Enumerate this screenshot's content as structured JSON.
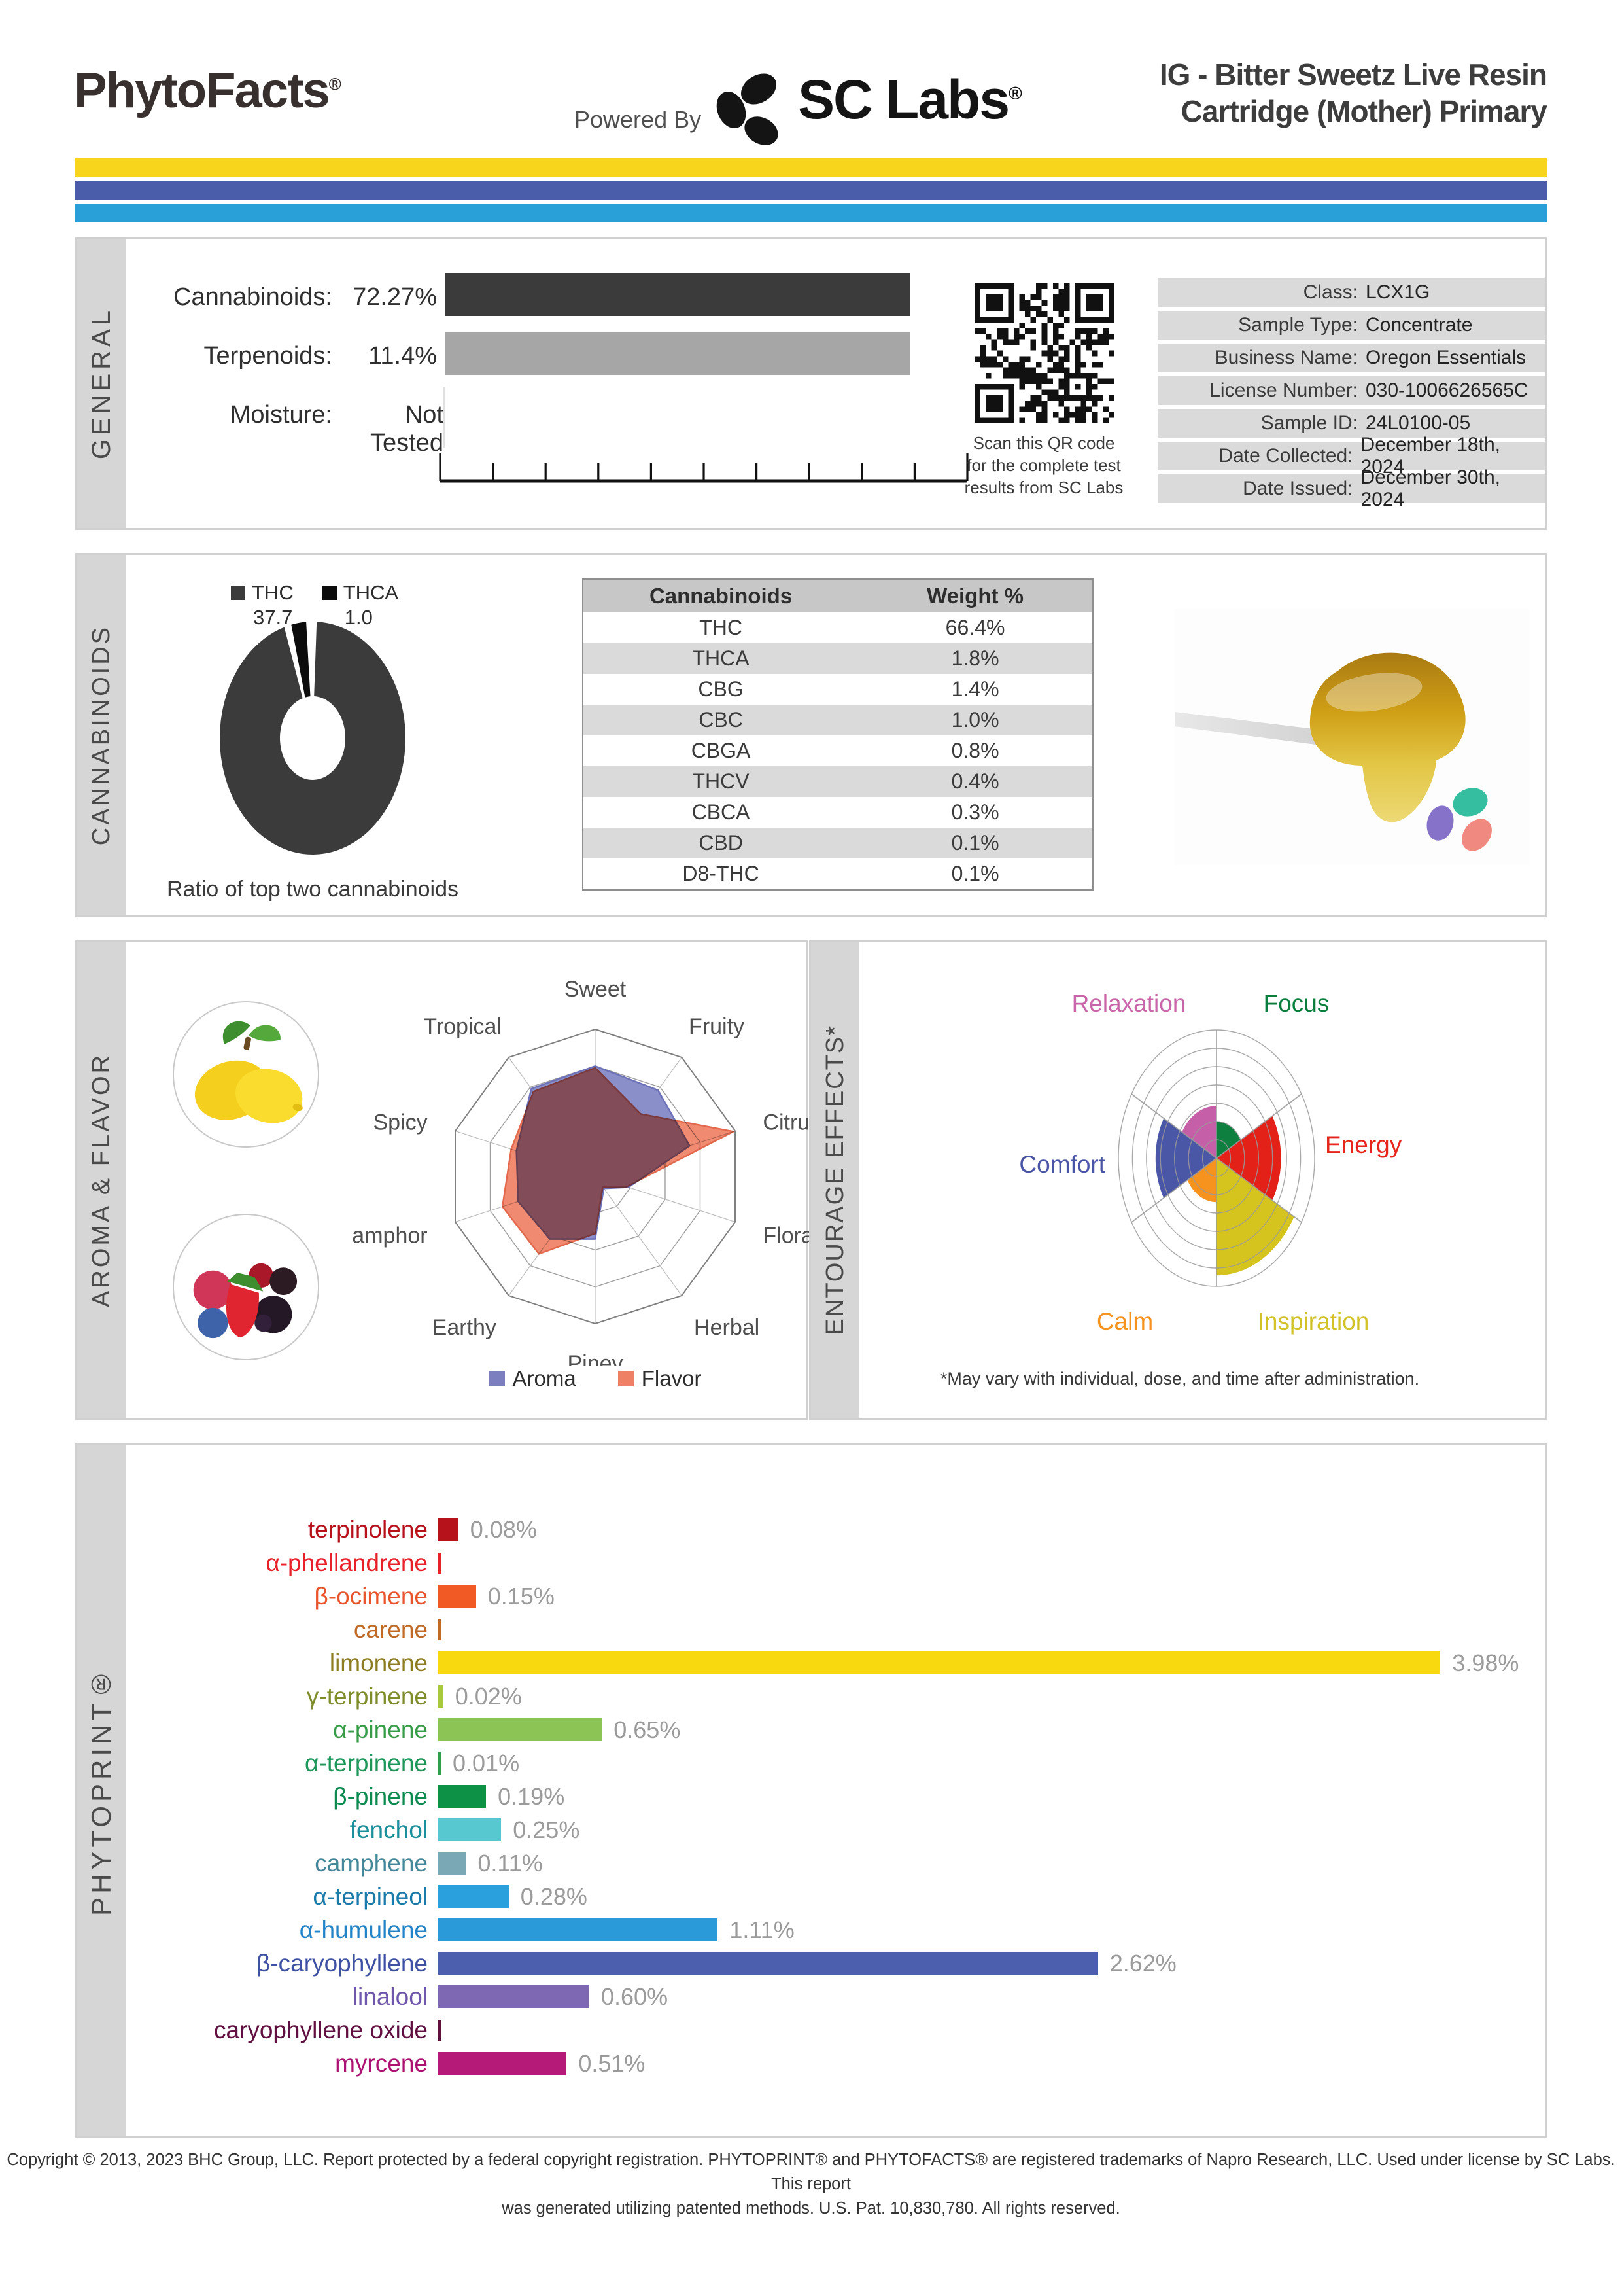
{
  "header": {
    "brand": "PhytoFacts",
    "reg_mark": "®",
    "powered_by": "Powered By",
    "sc_labs": "SC Labs",
    "title_line1": "IG - Bitter Sweetz Live Resin",
    "title_line2": "Cartridge (Mother) Primary",
    "stripe_colors": {
      "yellow": "#f6d51c",
      "indigo": "#4a5dab",
      "blue": "#2aa0d8"
    }
  },
  "general": {
    "section_label": "GENERAL",
    "rows": [
      {
        "label": "Cannabinoids:",
        "value": "72.27%"
      },
      {
        "label": "Terpenoids:",
        "value": "11.4%"
      },
      {
        "label": "Moisture:",
        "value": "Not Tested"
      }
    ],
    "qr_caption_lines": [
      "Scan this QR code",
      "for the complete test",
      "results from SC Labs"
    ],
    "info": [
      {
        "label": "Class:",
        "value": "LCX1G"
      },
      {
        "label": "Sample Type:",
        "value": "Concentrate"
      },
      {
        "label": "Business Name:",
        "value": "Oregon Essentials"
      },
      {
        "label": "License Number:",
        "value": "030-1006626565C"
      },
      {
        "label": "Sample ID:",
        "value": "24L0100-05"
      },
      {
        "label": "Date Collected:",
        "value": "December 18th, 2024"
      },
      {
        "label": "Date Issued:",
        "value": "December 30th, 2024"
      }
    ]
  },
  "cannabinoids": {
    "section_label": "CANNABINOIDS",
    "donut_caption": "Ratio of top two cannabinoids",
    "table_headers": [
      "Cannabinoids",
      "Weight %"
    ],
    "table_rows": [
      [
        "THC",
        "66.4%"
      ],
      [
        "THCA",
        "1.8%"
      ],
      [
        "CBG",
        "1.4%"
      ],
      [
        "CBC",
        "1.0%"
      ],
      [
        "CBGA",
        "0.8%"
      ],
      [
        "THCV",
        "0.4%"
      ],
      [
        "CBCA",
        "0.3%"
      ],
      [
        "CBD",
        "0.1%"
      ],
      [
        "D8-THC",
        "0.1%"
      ]
    ]
  },
  "aroma_flavor": {
    "section_label": "AROMA & FLAVOR",
    "legend": [
      {
        "label": "Aroma",
        "color": "#7b7fc0"
      },
      {
        "label": "Flavor",
        "color": "#ee8066"
      }
    ]
  },
  "entourage": {
    "section_label": "ENTOURAGE EFFECTS*",
    "footnote": "*May vary with individual, dose, and time after administration."
  },
  "phytoprint": {
    "section_label": "PHYTOPRINT®"
  },
  "footer": {
    "line1": "Copyright © 2013, 2023 BHC Group, LLC. Report protected by a federal copyright registration. PHYTOPRINT® and PHYTOFACTS® are registered trademarks of Napro Research, LLC. Used under license by SC Labs. This report",
    "line2": "was generated utilizing patented methods. U.S. Pat. 10,830,780. All rights reserved."
  },
  "chart_data": [
    {
      "id": "general_levels",
      "type": "bar",
      "unit": "%",
      "categories": [
        "Cannabinoids",
        "Terpenoids"
      ],
      "values": [
        72.27,
        11.4
      ],
      "note": "Moisture: Not Tested",
      "colors": [
        "#3b3b3b",
        "#a6a6a6"
      ]
    },
    {
      "id": "cannabinoid_ratio_donut",
      "type": "pie",
      "title": "Ratio of top two cannabinoids",
      "labels": [
        "THC",
        "THCA"
      ],
      "values": [
        37.7,
        1.0
      ],
      "colors": [
        "#3b3b3b",
        "#0c0c0c"
      ]
    },
    {
      "id": "aroma_flavor_radar",
      "type": "radar",
      "rmax": 4,
      "categories": [
        "Sweet",
        "Fruity",
        "Citrusy",
        "Floral",
        "Herbal",
        "Piney",
        "Earthy",
        "Camphor",
        "Spicy",
        "Tropical"
      ],
      "series": [
        {
          "name": "Aroma",
          "values": [
            3.0,
            2.9,
            2.7,
            0.95,
            0.4,
            1.7,
            2.1,
            2.2,
            2.25,
            2.95
          ],
          "color": "#8a8ec9",
          "stroke": "#6d72b8"
        },
        {
          "name": "Flavor",
          "values": [
            2.95,
            2.1,
            3.95,
            0.9,
            0.35,
            1.55,
            2.6,
            2.65,
            2.4,
            2.85
          ],
          "color": "#f08a70",
          "stroke": "#e3694e"
        }
      ],
      "legend_position": "bottom"
    },
    {
      "id": "entourage_rose",
      "type": "rose",
      "rmax": 7,
      "rings": 7,
      "categories": [
        "Focus",
        "Energy",
        "Inspiration",
        "Calm",
        "Comfort",
        "Relaxation"
      ],
      "values": [
        2.0,
        4.6,
        6.4,
        2.4,
        4.35,
        2.85
      ],
      "colors": [
        "#0e7f3f",
        "#e32119",
        "#d5c41d",
        "#f6921e",
        "#4a57a6",
        "#c45fa8"
      ],
      "label_colors": [
        "#0b7e3e",
        "#e6251c",
        "#d2c228",
        "#f6921e",
        "#4a55a5",
        "#c965a9"
      ]
    },
    {
      "id": "phytoprint_terpenes",
      "type": "bar",
      "orientation": "horizontal",
      "unit": "%",
      "xlim": [
        0,
        4.2
      ],
      "items": [
        {
          "name": "terpinolene",
          "value": 0.08,
          "display": "0.08%",
          "bar_color": "#b5121b",
          "label_color": "#b5121b"
        },
        {
          "name": "α-phellandrene",
          "value": 0,
          "display": "",
          "bar_color": "#e8202a",
          "label_color": "#e8202a"
        },
        {
          "name": "β-ocimene",
          "value": 0.15,
          "display": "0.15%",
          "bar_color": "#f15a24",
          "label_color": "#e8542c"
        },
        {
          "name": "carene",
          "value": 0,
          "display": "",
          "bar_color": "#bf6b27",
          "label_color": "#bf6b27"
        },
        {
          "name": "limonene",
          "value": 3.98,
          "display": "3.98%",
          "bar_color": "#f8d90f",
          "label_color": "#8d7d22"
        },
        {
          "name": "γ-terpinene",
          "value": 0.02,
          "display": "0.02%",
          "bar_color": "#a9c93d",
          "label_color": "#7e8c2a"
        },
        {
          "name": "α-pinene",
          "value": 0.65,
          "display": "0.65%",
          "bar_color": "#8cc455",
          "label_color": "#379b47"
        },
        {
          "name": "α-terpinene",
          "value": 0.01,
          "display": "0.01%",
          "bar_color": "#2f9e4f",
          "label_color": "#1f9559"
        },
        {
          "name": "β-pinene",
          "value": 0.19,
          "display": "0.19%",
          "bar_color": "#0d9147",
          "label_color": "#0d8a50"
        },
        {
          "name": "fenchol",
          "value": 0.25,
          "display": "0.25%",
          "bar_color": "#57c8cf",
          "label_color": "#1b8f9b"
        },
        {
          "name": "camphene",
          "value": 0.11,
          "display": "0.11%",
          "bar_color": "#7aa8b5",
          "label_color": "#45889a"
        },
        {
          "name": "α-terpineol",
          "value": 0.28,
          "display": "0.28%",
          "bar_color": "#2aa0dc",
          "label_color": "#1b7aa8"
        },
        {
          "name": "α-humulene",
          "value": 1.11,
          "display": "1.11%",
          "bar_color": "#2b9ad8",
          "label_color": "#2383c4"
        },
        {
          "name": "β-caryophyllene",
          "value": 2.62,
          "display": "2.62%",
          "bar_color": "#4b5fae",
          "label_color": "#3f51a3"
        },
        {
          "name": "linalool",
          "value": 0.6,
          "display": "0.60%",
          "bar_color": "#7e68b4",
          "label_color": "#6f58ab"
        },
        {
          "name": "caryophyllene oxide",
          "value": 0,
          "display": "",
          "bar_color": "#5f1040",
          "label_color": "#5f1040"
        },
        {
          "name": "myrcene",
          "value": 0.51,
          "display": "0.51%",
          "bar_color": "#b51a78",
          "label_color": "#ab1272"
        }
      ]
    }
  ]
}
